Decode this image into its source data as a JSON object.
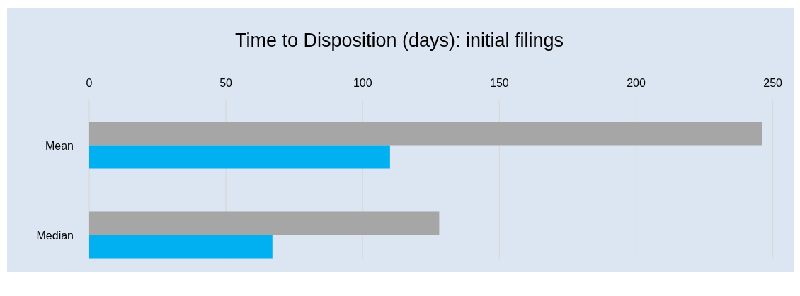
{
  "chart_data": {
    "type": "bar",
    "orientation": "horizontal",
    "title": "Time to Disposition (days): initial filings",
    "categories": [
      "Mean",
      "Median"
    ],
    "series": [
      {
        "color": "#a6a6a6",
        "values": [
          246,
          128
        ]
      },
      {
        "color": "#00b0f0",
        "values": [
          110,
          67
        ]
      }
    ],
    "xlim": [
      0,
      250
    ],
    "xticks": [
      0,
      50,
      100,
      150,
      200,
      250
    ],
    "grid": "x"
  }
}
